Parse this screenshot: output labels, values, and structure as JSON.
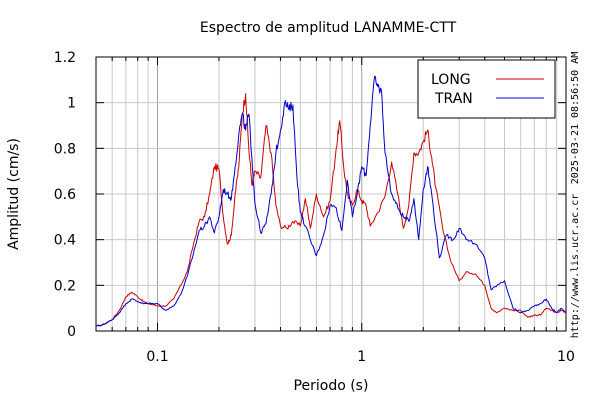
{
  "chart_data": {
    "type": "line",
    "title": "Espectro de amplitud LANAMME-CTT",
    "xlabel": "Periodo (s)",
    "ylabel": "Amplitud (cm/s)",
    "x_scale": "log",
    "xlim": [
      0.05,
      10
    ],
    "ylim": [
      0,
      1.2
    ],
    "x_ticks": [
      {
        "value": 0.1,
        "label": "0.1"
      },
      {
        "value": 1,
        "label": "1"
      },
      {
        "value": 10,
        "label": "10"
      }
    ],
    "y_ticks": [
      {
        "value": 0,
        "label": "0"
      },
      {
        "value": 0.2,
        "label": "0.2"
      },
      {
        "value": 0.4,
        "label": "0.4"
      },
      {
        "value": 0.6,
        "label": "0.6"
      },
      {
        "value": 0.8,
        "label": "0.8"
      },
      {
        "value": 1.0,
        "label": "1"
      },
      {
        "value": 1.2,
        "label": "1.2"
      }
    ],
    "grid": true,
    "legend_position": "top-right",
    "series": [
      {
        "name": "LONG",
        "color": "#cc0000",
        "points": [
          [
            0.05,
            0.02
          ],
          [
            0.055,
            0.03
          ],
          [
            0.06,
            0.05
          ],
          [
            0.065,
            0.09
          ],
          [
            0.07,
            0.15
          ],
          [
            0.075,
            0.17
          ],
          [
            0.08,
            0.15
          ],
          [
            0.085,
            0.13
          ],
          [
            0.09,
            0.12
          ],
          [
            0.1,
            0.11
          ],
          [
            0.11,
            0.11
          ],
          [
            0.12,
            0.14
          ],
          [
            0.13,
            0.2
          ],
          [
            0.14,
            0.26
          ],
          [
            0.15,
            0.38
          ],
          [
            0.16,
            0.48
          ],
          [
            0.17,
            0.5
          ],
          [
            0.18,
            0.6
          ],
          [
            0.19,
            0.72
          ],
          [
            0.2,
            0.71
          ],
          [
            0.21,
            0.5
          ],
          [
            0.22,
            0.38
          ],
          [
            0.23,
            0.42
          ],
          [
            0.24,
            0.6
          ],
          [
            0.25,
            0.72
          ],
          [
            0.26,
            0.95
          ],
          [
            0.27,
            1.04
          ],
          [
            0.28,
            0.8
          ],
          [
            0.29,
            0.64
          ],
          [
            0.3,
            0.7
          ],
          [
            0.32,
            0.67
          ],
          [
            0.34,
            0.9
          ],
          [
            0.36,
            0.78
          ],
          [
            0.38,
            0.55
          ],
          [
            0.4,
            0.46
          ],
          [
            0.43,
            0.45
          ],
          [
            0.46,
            0.48
          ],
          [
            0.5,
            0.46
          ],
          [
            0.53,
            0.58
          ],
          [
            0.56,
            0.45
          ],
          [
            0.6,
            0.6
          ],
          [
            0.65,
            0.5
          ],
          [
            0.7,
            0.57
          ],
          [
            0.75,
            0.8
          ],
          [
            0.78,
            0.92
          ],
          [
            0.82,
            0.7
          ],
          [
            0.86,
            0.58
          ],
          [
            0.9,
            0.55
          ],
          [
            0.95,
            0.62
          ],
          [
            1.0,
            0.57
          ],
          [
            1.05,
            0.55
          ],
          [
            1.1,
            0.46
          ],
          [
            1.2,
            0.52
          ],
          [
            1.3,
            0.59
          ],
          [
            1.4,
            0.74
          ],
          [
            1.5,
            0.6
          ],
          [
            1.6,
            0.45
          ],
          [
            1.7,
            0.55
          ],
          [
            1.8,
            0.78
          ],
          [
            1.9,
            0.78
          ],
          [
            2.0,
            0.83
          ],
          [
            2.1,
            0.88
          ],
          [
            2.2,
            0.76
          ],
          [
            2.3,
            0.63
          ],
          [
            2.5,
            0.44
          ],
          [
            2.7,
            0.32
          ],
          [
            3.0,
            0.22
          ],
          [
            3.3,
            0.26
          ],
          [
            3.6,
            0.25
          ],
          [
            4.0,
            0.2
          ],
          [
            4.3,
            0.1
          ],
          [
            4.6,
            0.08
          ],
          [
            5.0,
            0.1
          ],
          [
            5.5,
            0.09
          ],
          [
            6.0,
            0.09
          ],
          [
            6.5,
            0.06
          ],
          [
            7.0,
            0.07
          ],
          [
            7.5,
            0.07
          ],
          [
            8.0,
            0.1
          ],
          [
            8.5,
            0.09
          ],
          [
            9.0,
            0.08
          ],
          [
            9.5,
            0.09
          ],
          [
            10.0,
            0.08
          ]
        ]
      },
      {
        "name": "TRAN",
        "color": "#0000cc",
        "points": [
          [
            0.05,
            0.02
          ],
          [
            0.055,
            0.03
          ],
          [
            0.06,
            0.05
          ],
          [
            0.065,
            0.08
          ],
          [
            0.07,
            0.12
          ],
          [
            0.075,
            0.14
          ],
          [
            0.08,
            0.13
          ],
          [
            0.085,
            0.12
          ],
          [
            0.09,
            0.12
          ],
          [
            0.1,
            0.12
          ],
          [
            0.11,
            0.09
          ],
          [
            0.12,
            0.11
          ],
          [
            0.13,
            0.16
          ],
          [
            0.14,
            0.24
          ],
          [
            0.15,
            0.34
          ],
          [
            0.16,
            0.44
          ],
          [
            0.17,
            0.46
          ],
          [
            0.18,
            0.5
          ],
          [
            0.19,
            0.43
          ],
          [
            0.2,
            0.5
          ],
          [
            0.21,
            0.62
          ],
          [
            0.22,
            0.6
          ],
          [
            0.23,
            0.58
          ],
          [
            0.24,
            0.72
          ],
          [
            0.25,
            0.86
          ],
          [
            0.26,
            0.95
          ],
          [
            0.27,
            0.88
          ],
          [
            0.28,
            0.95
          ],
          [
            0.29,
            0.76
          ],
          [
            0.3,
            0.56
          ],
          [
            0.32,
            0.43
          ],
          [
            0.34,
            0.47
          ],
          [
            0.36,
            0.6
          ],
          [
            0.38,
            0.78
          ],
          [
            0.4,
            0.88
          ],
          [
            0.42,
            1.0
          ],
          [
            0.44,
            0.97
          ],
          [
            0.46,
            0.99
          ],
          [
            0.48,
            0.7
          ],
          [
            0.5,
            0.52
          ],
          [
            0.53,
            0.46
          ],
          [
            0.56,
            0.4
          ],
          [
            0.6,
            0.33
          ],
          [
            0.65,
            0.42
          ],
          [
            0.7,
            0.55
          ],
          [
            0.75,
            0.54
          ],
          [
            0.8,
            0.44
          ],
          [
            0.85,
            0.66
          ],
          [
            0.9,
            0.5
          ],
          [
            0.95,
            0.6
          ],
          [
            1.0,
            0.72
          ],
          [
            1.05,
            0.68
          ],
          [
            1.1,
            0.9
          ],
          [
            1.15,
            1.1
          ],
          [
            1.2,
            1.07
          ],
          [
            1.25,
            1.05
          ],
          [
            1.3,
            0.78
          ],
          [
            1.4,
            0.6
          ],
          [
            1.5,
            0.54
          ],
          [
            1.6,
            0.5
          ],
          [
            1.7,
            0.48
          ],
          [
            1.8,
            0.58
          ],
          [
            1.9,
            0.4
          ],
          [
            2.0,
            0.62
          ],
          [
            2.1,
            0.72
          ],
          [
            2.2,
            0.6
          ],
          [
            2.4,
            0.32
          ],
          [
            2.6,
            0.42
          ],
          [
            2.8,
            0.4
          ],
          [
            3.0,
            0.45
          ],
          [
            3.3,
            0.4
          ],
          [
            3.6,
            0.38
          ],
          [
            4.0,
            0.32
          ],
          [
            4.3,
            0.18
          ],
          [
            4.6,
            0.2
          ],
          [
            5.0,
            0.22
          ],
          [
            5.5,
            0.1
          ],
          [
            6.0,
            0.08
          ],
          [
            6.5,
            0.09
          ],
          [
            7.0,
            0.11
          ],
          [
            7.5,
            0.12
          ],
          [
            8.0,
            0.14
          ],
          [
            8.5,
            0.1
          ],
          [
            9.0,
            0.08
          ],
          [
            9.5,
            0.1
          ],
          [
            10.0,
            0.08
          ]
        ]
      }
    ]
  },
  "side_annotations": {
    "timestamp": "2025-03-21 08:56:50 AM",
    "url": "http://www.lis.ucr.ac.cr"
  }
}
